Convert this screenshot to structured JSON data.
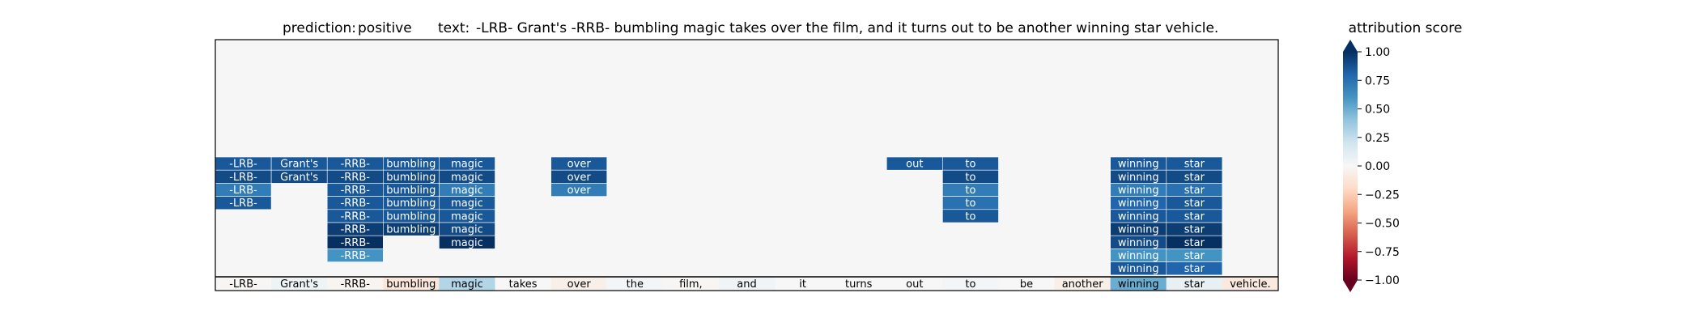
{
  "chart_data": {
    "type": "heatmap",
    "title": {
      "prediction_label": "prediction:",
      "prediction_value": "positive",
      "text_label": "text:",
      "text_value": "-LRB- Grant's -RRB- bumbling magic takes over the film, and it turns out to be another winning star vehicle."
    },
    "tokens": [
      "-LRB-",
      "Grant's",
      "-RRB-",
      "bumbling",
      "magic",
      "takes",
      "over",
      "the",
      "film,",
      "and",
      "it",
      "turns",
      "out",
      "to",
      "be",
      "another",
      "winning",
      "star",
      "vehicle."
    ],
    "token_scores": [
      -0.01,
      0.05,
      -0.02,
      -0.12,
      0.3,
      0.0,
      -0.06,
      0.02,
      -0.01,
      0.03,
      0.0,
      0.0,
      0.0,
      0.02,
      0.0,
      -0.06,
      0.5,
      0.08,
      -0.1
    ],
    "grid_rows": 18,
    "stack_cells": [
      {
        "col": 0,
        "row": 9,
        "token": "-LRB-",
        "score": 0.85
      },
      {
        "col": 0,
        "row": 10,
        "token": "-LRB-",
        "score": 0.9
      },
      {
        "col": 0,
        "row": 11,
        "token": "-LRB-",
        "score": 0.7
      },
      {
        "col": 0,
        "row": 12,
        "token": "-LRB-",
        "score": 0.85
      },
      {
        "col": 1,
        "row": 9,
        "token": "Grant's",
        "score": 0.85
      },
      {
        "col": 1,
        "row": 10,
        "token": "Grant's",
        "score": 0.9
      },
      {
        "col": 2,
        "row": 9,
        "token": "-RRB-",
        "score": 0.85
      },
      {
        "col": 2,
        "row": 10,
        "token": "-RRB-",
        "score": 0.9
      },
      {
        "col": 2,
        "row": 11,
        "token": "-RRB-",
        "score": 0.85
      },
      {
        "col": 2,
        "row": 12,
        "token": "-RRB-",
        "score": 0.85
      },
      {
        "col": 2,
        "row": 13,
        "token": "-RRB-",
        "score": 0.85
      },
      {
        "col": 2,
        "row": 14,
        "token": "-RRB-",
        "score": 0.95
      },
      {
        "col": 2,
        "row": 15,
        "token": "-RRB-",
        "score": 1.0
      },
      {
        "col": 2,
        "row": 16,
        "token": "-RRB-",
        "score": 0.6
      },
      {
        "col": 3,
        "row": 9,
        "token": "bumbling",
        "score": 0.85
      },
      {
        "col": 3,
        "row": 10,
        "token": "bumbling",
        "score": 0.9
      },
      {
        "col": 3,
        "row": 11,
        "token": "bumbling",
        "score": 0.85
      },
      {
        "col": 3,
        "row": 12,
        "token": "bumbling",
        "score": 0.85
      },
      {
        "col": 3,
        "row": 13,
        "token": "bumbling",
        "score": 0.85
      },
      {
        "col": 3,
        "row": 14,
        "token": "bumbling",
        "score": 0.95
      },
      {
        "col": 4,
        "row": 9,
        "token": "magic",
        "score": 0.85
      },
      {
        "col": 4,
        "row": 10,
        "token": "magic",
        "score": 0.9
      },
      {
        "col": 4,
        "row": 11,
        "token": "magic",
        "score": 0.7
      },
      {
        "col": 4,
        "row": 12,
        "token": "magic",
        "score": 0.85
      },
      {
        "col": 4,
        "row": 13,
        "token": "magic",
        "score": 0.85
      },
      {
        "col": 4,
        "row": 14,
        "token": "magic",
        "score": 0.9
      },
      {
        "col": 4,
        "row": 15,
        "token": "magic",
        "score": 1.0
      },
      {
        "col": 6,
        "row": 9,
        "token": "over",
        "score": 0.85
      },
      {
        "col": 6,
        "row": 10,
        "token": "over",
        "score": 0.9
      },
      {
        "col": 6,
        "row": 11,
        "token": "over",
        "score": 0.7
      },
      {
        "col": 12,
        "row": 9,
        "token": "out",
        "score": 0.85
      },
      {
        "col": 13,
        "row": 9,
        "token": "to",
        "score": 0.85
      },
      {
        "col": 13,
        "row": 10,
        "token": "to",
        "score": 0.9
      },
      {
        "col": 13,
        "row": 11,
        "token": "to",
        "score": 0.7
      },
      {
        "col": 13,
        "row": 12,
        "token": "to",
        "score": 0.75
      },
      {
        "col": 13,
        "row": 13,
        "token": "to",
        "score": 0.85
      },
      {
        "col": 16,
        "row": 9,
        "token": "winning",
        "score": 0.85
      },
      {
        "col": 16,
        "row": 10,
        "token": "winning",
        "score": 0.9
      },
      {
        "col": 16,
        "row": 11,
        "token": "winning",
        "score": 0.7
      },
      {
        "col": 16,
        "row": 12,
        "token": "winning",
        "score": 0.8
      },
      {
        "col": 16,
        "row": 13,
        "token": "winning",
        "score": 0.85
      },
      {
        "col": 16,
        "row": 14,
        "token": "winning",
        "score": 0.95
      },
      {
        "col": 16,
        "row": 15,
        "token": "winning",
        "score": 0.9
      },
      {
        "col": 16,
        "row": 16,
        "token": "winning",
        "score": 0.6
      },
      {
        "col": 16,
        "row": 17,
        "token": "winning",
        "score": 0.85
      },
      {
        "col": 17,
        "row": 9,
        "token": "star",
        "score": 0.85
      },
      {
        "col": 17,
        "row": 10,
        "token": "star",
        "score": 0.9
      },
      {
        "col": 17,
        "row": 11,
        "token": "star",
        "score": 0.75
      },
      {
        "col": 17,
        "row": 12,
        "token": "star",
        "score": 0.85
      },
      {
        "col": 17,
        "row": 13,
        "token": "star",
        "score": 0.85
      },
      {
        "col": 17,
        "row": 14,
        "token": "star",
        "score": 0.95
      },
      {
        "col": 17,
        "row": 15,
        "token": "star",
        "score": 1.0
      },
      {
        "col": 17,
        "row": 16,
        "token": "star",
        "score": 0.6
      },
      {
        "col": 17,
        "row": 17,
        "token": "star",
        "score": 0.8
      }
    ],
    "colorbar": {
      "label": "attribution score",
      "range": [
        -1.0,
        1.0
      ],
      "ticks": [
        1.0,
        0.75,
        0.5,
        0.25,
        0.0,
        -0.25,
        -0.5,
        -0.75,
        -1.0
      ],
      "tick_labels": [
        "1.00",
        "0.75",
        "0.50",
        "0.25",
        "0.00",
        "−0.25",
        "−0.50",
        "−0.75",
        "−1.00"
      ],
      "colormap": "RdBu",
      "extend": "both"
    },
    "colors": {
      "background": "#f5f6f5",
      "text_light": "#ffffff",
      "text_dark": "#000000"
    }
  }
}
